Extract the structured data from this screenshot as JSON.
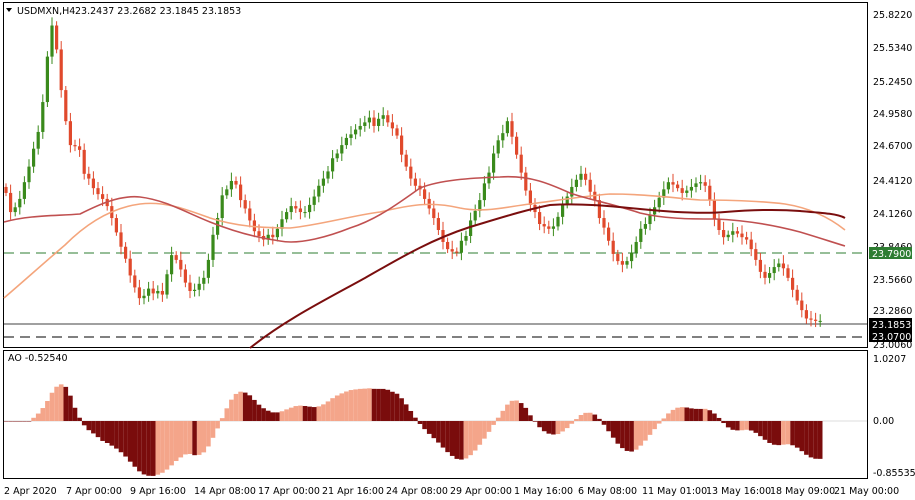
{
  "header": {
    "menu_arrow": "triangle-down-icon",
    "symbol_tf": "USDMXN,H4",
    "ohlc": "23.2437 23.2682 23.1845 23.1853"
  },
  "oscillator": {
    "label": "AO -0.52540",
    "axis": [
      "1.0207",
      "0.00",
      "-0.85535"
    ]
  },
  "price_axis": [
    "25.8220",
    "25.5340",
    "25.2450",
    "24.9580",
    "24.6700",
    "24.4120",
    "24.1260",
    "23.8460",
    "23.5660",
    "23.2860",
    "23.0060"
  ],
  "markers": {
    "hline_level": "23.7900",
    "current_price": "23.1853",
    "lower_level": "23.0700"
  },
  "time_axis": [
    "2 Apr 2020",
    "7 Apr 00:00",
    "9 Apr 16:00",
    "14 Apr 08:00",
    "17 Apr 00:00",
    "21 Apr 16:00",
    "24 Apr 08:00",
    "29 Apr 00:00",
    "1 May 16:00",
    "6 May 08:00",
    "11 May 01:00",
    "13 May 16:00",
    "18 May 09:00",
    "21 May 00:00"
  ],
  "colors": {
    "bull": "#3a8a1c",
    "bear": "#e0492c",
    "ma_fast": "#f4a57c",
    "ma_mid": "#c05050",
    "ma_slow": "#7a0e0e",
    "ao_up": "#f4a58a",
    "ao_down": "#7a0c0c",
    "level_line": "#2e7d32"
  },
  "chart_data": {
    "type": "candlestick",
    "title": "USDMXN,H4",
    "last_ohlc": [
      23.2437,
      23.2682,
      23.1845,
      23.1853
    ],
    "ylim": [
      22.98,
      25.84
    ],
    "closes": [
      24.26,
      24.1,
      24.14,
      24.21,
      24.35,
      24.48,
      24.63,
      24.77,
      25.02,
      25.4,
      25.66,
      25.46,
      25.12,
      24.86,
      24.66,
      24.65,
      24.62,
      24.42,
      24.38,
      24.3,
      24.25,
      24.21,
      24.15,
      24.05,
      23.93,
      23.81,
      23.71,
      23.57,
      23.47,
      23.38,
      23.4,
      23.46,
      23.42,
      23.44,
      23.41,
      23.58,
      23.74,
      23.7,
      23.62,
      23.51,
      23.44,
      23.45,
      23.5,
      23.55,
      23.7,
      23.91,
      24.05,
      24.24,
      24.29,
      24.36,
      24.33,
      24.2,
      24.13,
      24.03,
      23.94,
      23.9,
      23.87,
      23.91,
      23.89,
      23.96,
      24.04,
      24.1,
      24.15,
      24.13,
      24.1,
      24.1,
      24.16,
      24.23,
      24.32,
      24.38,
      24.44,
      24.55,
      24.59,
      24.66,
      24.72,
      24.75,
      24.79,
      24.82,
      24.85,
      24.89,
      24.82,
      24.88,
      24.91,
      24.85,
      24.8,
      24.74,
      24.58,
      24.48,
      24.38,
      24.32,
      24.29,
      24.21,
      24.13,
      24.05,
      23.95,
      23.85,
      23.79,
      23.77,
      23.76,
      23.86,
      23.9,
      24.03,
      24.11,
      24.2,
      24.34,
      24.43,
      24.59,
      24.7,
      24.76,
      24.86,
      24.73,
      24.58,
      24.43,
      24.28,
      24.16,
      24.1,
      24.0,
      23.98,
      23.96,
      23.98,
      24.06,
      24.16,
      24.23,
      24.31,
      24.37,
      24.42,
      24.37,
      24.27,
      24.2,
      24.05,
      23.97,
      23.86,
      23.75,
      23.69,
      23.66,
      23.69,
      23.76,
      23.85,
      23.96,
      24.0,
      24.08,
      24.14,
      24.22,
      24.29,
      24.35,
      24.33,
      24.3,
      24.26,
      24.28,
      24.31,
      24.34,
      24.35,
      24.32,
      24.2,
      24.04,
      23.95,
      23.89,
      23.91,
      23.94,
      23.92,
      23.89,
      23.87,
      23.79,
      23.7,
      23.6,
      23.55,
      23.59,
      23.64,
      23.67,
      23.63,
      23.55,
      23.45,
      23.36,
      23.28,
      23.21,
      23.2,
      23.19,
      23.19
    ]
  }
}
